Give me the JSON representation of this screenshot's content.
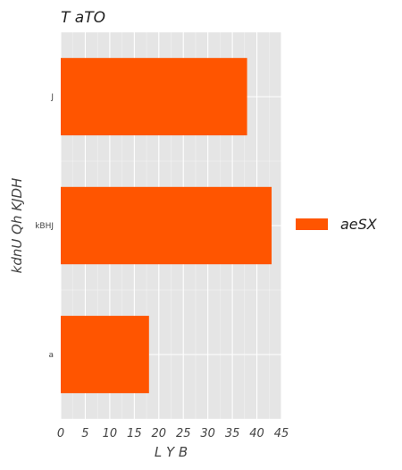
{
  "chart_data": {
    "type": "bar",
    "orientation": "horizontal",
    "title": "T  aTO",
    "xlabel": "L  Y  B",
    "ylabel": "kdnU  Qh  KJDH",
    "categories": [
      "a",
      "kBHJ",
      "J"
    ],
    "series": [
      {
        "name": "aeSX",
        "values": [
          18,
          43,
          38
        ],
        "color": "#ff5500"
      }
    ],
    "xlim": [
      0,
      45
    ],
    "xticks": [
      0,
      5,
      10,
      15,
      20,
      25,
      30,
      35,
      40,
      45
    ],
    "grid": true,
    "background_color": "#e5e5e5",
    "grid_color": "#ffffff",
    "legend_position": "right"
  }
}
